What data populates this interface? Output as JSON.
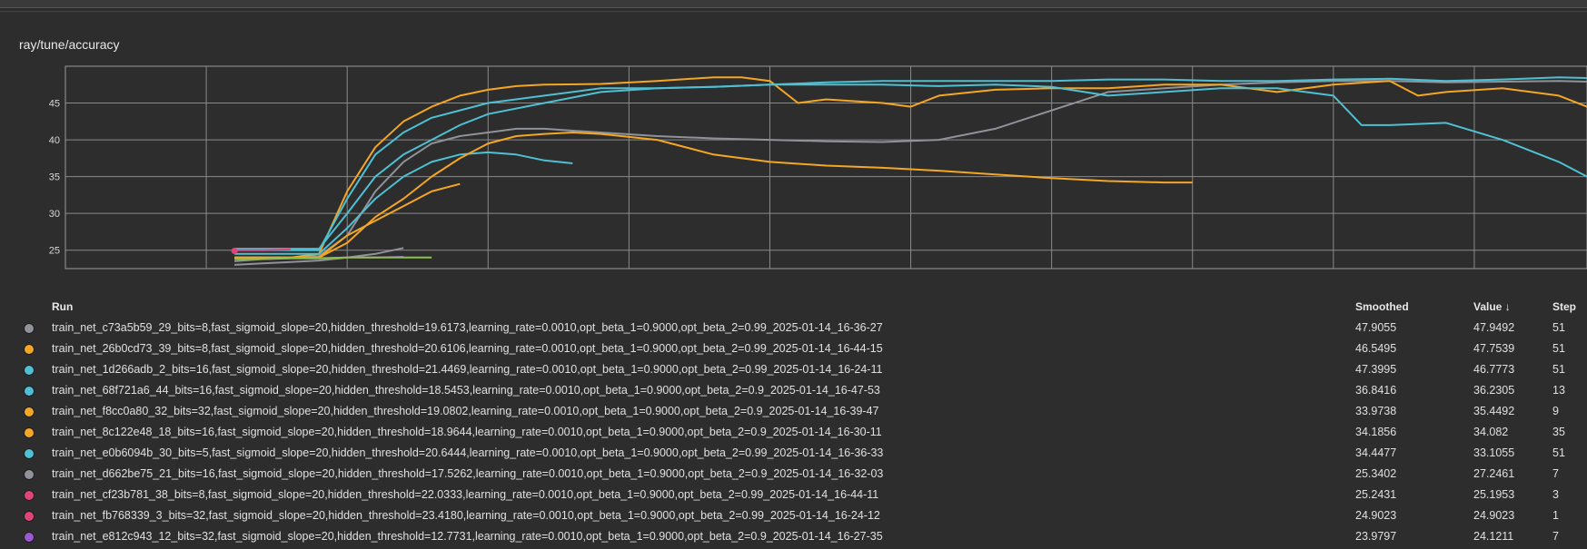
{
  "chart_data": {
    "type": "line",
    "title": "ray/tune/accuracy",
    "xlabel": "",
    "ylabel": "",
    "xlim": [
      -5,
      49
    ],
    "ylim": [
      22.5,
      50
    ],
    "x_ticks": [
      0,
      5,
      10,
      15,
      20,
      25,
      30,
      35,
      40,
      45
    ],
    "y_ticks": [
      25,
      30,
      35,
      40,
      45
    ],
    "grid": true,
    "legend": "table-below",
    "series": [
      {
        "color": "#8f9298",
        "x": [
          1,
          2,
          3,
          4,
          5,
          6,
          7,
          8,
          9,
          10,
          11,
          12,
          14,
          16,
          18,
          20,
          22,
          24,
          26,
          28,
          30,
          32,
          34,
          36,
          38,
          40,
          42,
          44,
          46,
          48,
          49
        ],
        "y": [
          23.5,
          23.8,
          24,
          24.2,
          27,
          33,
          37,
          39.5,
          40.5,
          41,
          41.5,
          41.5,
          41,
          40.5,
          40.2,
          40,
          39.8,
          39.7,
          40,
          41.5,
          44,
          46.5,
          47,
          47.5,
          47.8,
          48,
          48,
          47.8,
          47.9,
          48,
          47.9
        ]
      },
      {
        "color": "#f5a623",
        "x": [
          1,
          2,
          3,
          4,
          5,
          6,
          7,
          8,
          9,
          10,
          11,
          12,
          14,
          16,
          18,
          19,
          20,
          21,
          22,
          24,
          25,
          26,
          28,
          30,
          32,
          34,
          36,
          38,
          40,
          42,
          43,
          44,
          46,
          48,
          49
        ],
        "y": [
          24,
          24,
          24,
          24.5,
          33,
          39,
          42.5,
          44.5,
          46,
          46.8,
          47.3,
          47.5,
          47.6,
          48,
          48.5,
          48.5,
          48,
          45,
          45.5,
          45,
          44.5,
          46,
          46.8,
          47,
          47,
          47.5,
          47.5,
          46.5,
          47.5,
          48,
          46,
          46.5,
          47,
          46,
          44.5
        ]
      },
      {
        "color": "#4fc0d4",
        "x": [
          1,
          2,
          3,
          4,
          5,
          6,
          7,
          8,
          10,
          12,
          14,
          16,
          18,
          20,
          22,
          24,
          26,
          28,
          30,
          32,
          34,
          36,
          38,
          40,
          42,
          44,
          46,
          48,
          49
        ],
        "y": [
          25,
          25,
          25,
          25,
          32,
          38,
          41,
          43,
          45,
          46,
          47,
          47,
          47.2,
          47.5,
          47.8,
          48,
          48,
          48,
          48,
          48.2,
          48.2,
          48,
          48,
          48.2,
          48.3,
          48,
          48.2,
          48.5,
          48.4
        ]
      },
      {
        "color": "#4fc0d4",
        "x": [
          1,
          2,
          3,
          4,
          5,
          6,
          7,
          8,
          9,
          10,
          11,
          12,
          13
        ],
        "y": [
          24.5,
          24.5,
          24.5,
          24.5,
          28,
          32,
          35,
          37,
          38,
          38.3,
          38,
          37.2,
          36.8
        ]
      },
      {
        "color": "#f5a623",
        "x": [
          1,
          2,
          3,
          4,
          5,
          6,
          7,
          8,
          9
        ],
        "y": [
          24,
          24,
          24,
          24,
          27,
          29,
          31,
          33,
          34
        ]
      },
      {
        "color": "#f5a623",
        "x": [
          1,
          2,
          3,
          4,
          5,
          6,
          7,
          8,
          9,
          10,
          11,
          12,
          13,
          14,
          16,
          18,
          20,
          22,
          24,
          26,
          28,
          30,
          32,
          34,
          35
        ],
        "y": [
          24,
          24,
          24,
          24,
          26,
          29.5,
          32,
          35,
          37.5,
          39.5,
          40.5,
          40.8,
          41,
          40.8,
          40,
          38,
          37,
          36.5,
          36.2,
          35.8,
          35.3,
          34.8,
          34.4,
          34.2,
          34.2
        ]
      },
      {
        "color": "#4fc0d4",
        "x": [
          1,
          2,
          3,
          4,
          5,
          6,
          7,
          8,
          9,
          10,
          12,
          14,
          16,
          18,
          20,
          22,
          24,
          26,
          28,
          30,
          32,
          34,
          36,
          38,
          40,
          41,
          42,
          44,
          46,
          48,
          49
        ],
        "y": [
          25.2,
          25.2,
          25.2,
          25.2,
          30,
          35,
          38,
          40,
          42,
          43.5,
          45,
          46.5,
          47,
          47.2,
          47.5,
          47.5,
          47.5,
          47.3,
          47.5,
          47.2,
          46,
          46.5,
          47,
          47,
          46,
          42,
          42,
          42.3,
          40,
          37,
          35
        ]
      },
      {
        "color": "#8f9298",
        "x": [
          1,
          2,
          3,
          4,
          5,
          6,
          7
        ],
        "y": [
          23,
          23.2,
          23.4,
          23.6,
          24,
          24.5,
          25.3
        ]
      },
      {
        "color": "#e0447a",
        "x": [
          1,
          2,
          3
        ],
        "y": [
          25,
          25,
          25.1
        ]
      },
      {
        "color": "#e0447a",
        "x": [
          1
        ],
        "y": [
          24.9
        ]
      },
      {
        "color": "#9b59d0",
        "x": [
          1,
          2,
          3,
          4,
          5,
          6,
          7
        ],
        "y": [
          23.8,
          23.8,
          23.9,
          23.9,
          24,
          24,
          24.1
        ]
      },
      {
        "color": "#8bc34a",
        "x": [
          1,
          2,
          3,
          4,
          5,
          6,
          7,
          8
        ],
        "y": [
          23.8,
          23.8,
          23.9,
          23.9,
          24,
          24,
          24,
          24
        ]
      }
    ]
  },
  "table": {
    "headers": {
      "run": "Run",
      "smoothed": "Smoothed",
      "value": "Value ↓",
      "step": "Step"
    },
    "rows": [
      {
        "color": "#8f9298",
        "run": "train_net_c73a5b59_29_bits=8,fast_sigmoid_slope=20,hidden_threshold=19.6173,learning_rate=0.0010,opt_beta_1=0.9000,opt_beta_2=0.99_2025-01-14_16-36-27",
        "smoothed": "47.9055",
        "value": "47.9492",
        "step": "51"
      },
      {
        "color": "#f5a623",
        "run": "train_net_26b0cd73_39_bits=8,fast_sigmoid_slope=20,hidden_threshold=20.6106,learning_rate=0.0010,opt_beta_1=0.9000,opt_beta_2=0.99_2025-01-14_16-44-15",
        "smoothed": "46.5495",
        "value": "47.7539",
        "step": "51"
      },
      {
        "color": "#4fc0d4",
        "run": "train_net_1d266adb_2_bits=16,fast_sigmoid_slope=20,hidden_threshold=21.4469,learning_rate=0.0010,opt_beta_1=0.9000,opt_beta_2=0.99_2025-01-14_16-24-11",
        "smoothed": "47.3995",
        "value": "46.7773",
        "step": "51"
      },
      {
        "color": "#4fc0d4",
        "run": "train_net_68f721a6_44_bits=16,fast_sigmoid_slope=20,hidden_threshold=18.5453,learning_rate=0.0010,opt_beta_1=0.9000,opt_beta_2=0.9_2025-01-14_16-47-53",
        "smoothed": "36.8416",
        "value": "36.2305",
        "step": "13"
      },
      {
        "color": "#f5a623",
        "run": "train_net_f8cc0a80_32_bits=32,fast_sigmoid_slope=20,hidden_threshold=19.0802,learning_rate=0.0010,opt_beta_1=0.9000,opt_beta_2=0.9_2025-01-14_16-39-47",
        "smoothed": "33.9738",
        "value": "35.4492",
        "step": "9"
      },
      {
        "color": "#f5a623",
        "run": "train_net_8c122e48_18_bits=16,fast_sigmoid_slope=20,hidden_threshold=18.9644,learning_rate=0.0010,opt_beta_1=0.9000,opt_beta_2=0.9_2025-01-14_16-30-11",
        "smoothed": "34.1856",
        "value": "34.082",
        "step": "35"
      },
      {
        "color": "#4fc0d4",
        "run": "train_net_e0b6094b_30_bits=5,fast_sigmoid_slope=20,hidden_threshold=20.6444,learning_rate=0.0010,opt_beta_1=0.9000,opt_beta_2=0.99_2025-01-14_16-36-33",
        "smoothed": "34.4477",
        "value": "33.1055",
        "step": "51"
      },
      {
        "color": "#8f9298",
        "run": "train_net_d662be75_21_bits=16,fast_sigmoid_slope=20,hidden_threshold=17.5262,learning_rate=0.0010,opt_beta_1=0.9000,opt_beta_2=0.9_2025-01-14_16-32-03",
        "smoothed": "25.3402",
        "value": "27.2461",
        "step": "7"
      },
      {
        "color": "#e0447a",
        "run": "train_net_cf23b781_38_bits=8,fast_sigmoid_slope=20,hidden_threshold=22.0333,learning_rate=0.0010,opt_beta_1=0.9000,opt_beta_2=0.99_2025-01-14_16-44-11",
        "smoothed": "25.2431",
        "value": "25.1953",
        "step": "3"
      },
      {
        "color": "#e0447a",
        "run": "train_net_fb768339_3_bits=32,fast_sigmoid_slope=20,hidden_threshold=23.4180,learning_rate=0.0010,opt_beta_1=0.9000,opt_beta_2=0.99_2025-01-14_16-24-12",
        "smoothed": "24.9023",
        "value": "24.9023",
        "step": "1"
      },
      {
        "color": "#9b59d0",
        "run": "train_net_e812c943_12_bits=32,fast_sigmoid_slope=20,hidden_threshold=12.7731,learning_rate=0.0010,opt_beta_1=0.9000,opt_beta_2=0.9_2025-01-14_16-27-35",
        "smoothed": "23.9797",
        "value": "24.1211",
        "step": "7"
      }
    ]
  }
}
